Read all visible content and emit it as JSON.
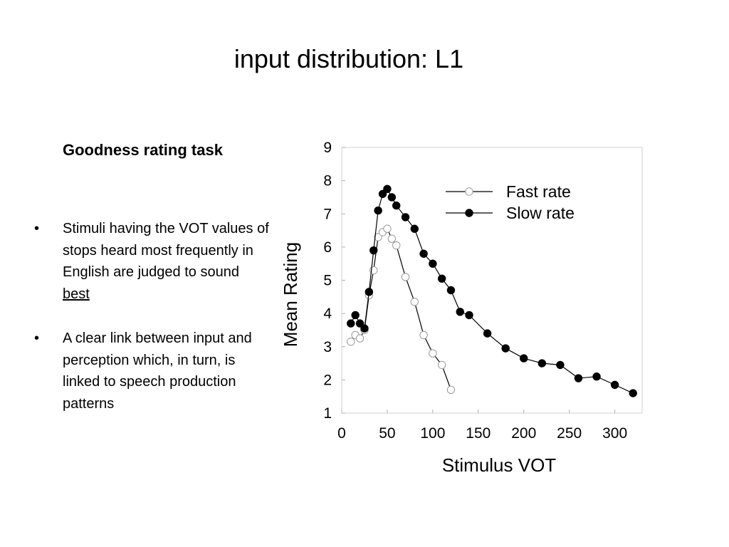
{
  "slide": {
    "title": "input distribution: L1",
    "subheading": "Goodness rating task",
    "bullets": [
      {
        "text": "Stimuli having the VOT values of stops heard most frequently in English are judged to sound ",
        "emphasis": "best"
      },
      {
        "text": "A clear link between input and perception which, in turn, is linked to speech production patterns"
      }
    ]
  },
  "chart_data": {
    "type": "line",
    "title": "",
    "xlabel": "Stimulus VOT",
    "ylabel": "Mean Rating",
    "xlim": [
      0,
      330
    ],
    "ylim": [
      1,
      9
    ],
    "xticks": [
      0,
      50,
      100,
      150,
      200,
      250,
      300
    ],
    "yticks": [
      1,
      2,
      3,
      4,
      5,
      6,
      7,
      8,
      9
    ],
    "grid": false,
    "legend_position": "top-right",
    "series": [
      {
        "name": "Fast rate",
        "marker": "open-circle",
        "color": "#000000",
        "fill": "#ffffff",
        "x": [
          10,
          15,
          20,
          25,
          30,
          35,
          40,
          45,
          50,
          55,
          60,
          70,
          80,
          90,
          100,
          110,
          120
        ],
        "y": [
          3.15,
          3.35,
          3.25,
          3.5,
          4.55,
          5.3,
          6.3,
          6.45,
          6.55,
          6.25,
          6.05,
          5.1,
          4.35,
          3.35,
          2.8,
          2.45,
          1.7
        ]
      },
      {
        "name": "Slow rate",
        "marker": "filled-circle",
        "color": "#000000",
        "fill": "#000000",
        "x": [
          10,
          15,
          20,
          25,
          30,
          35,
          40,
          45,
          50,
          55,
          60,
          70,
          80,
          90,
          100,
          110,
          120,
          130,
          140,
          160,
          180,
          200,
          220,
          240,
          260,
          280,
          300,
          320
        ],
        "y": [
          3.7,
          3.95,
          3.7,
          3.55,
          4.65,
          5.9,
          7.1,
          7.6,
          7.75,
          7.5,
          7.25,
          6.9,
          6.55,
          5.8,
          5.5,
          5.05,
          4.7,
          4.05,
          3.95,
          3.4,
          2.95,
          2.65,
          2.5,
          2.45,
          2.05,
          2.1,
          1.85,
          1.6
        ]
      }
    ]
  }
}
